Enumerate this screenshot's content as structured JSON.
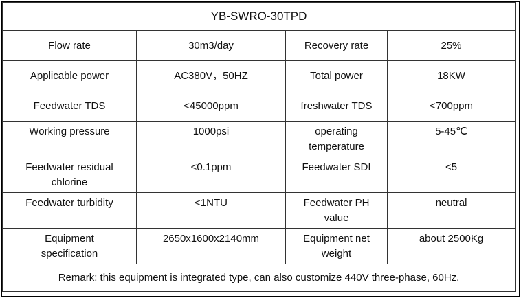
{
  "table": {
    "title": "YB-SWRO-30TPD",
    "rows": [
      [
        "Flow rate",
        "30m3/day",
        "Recovery rate",
        "25%"
      ],
      [
        "Applicable power",
        "AC380V，50HZ",
        "Total power",
        "18KW"
      ],
      [
        "Feedwater TDS",
        "<45000ppm",
        "freshwater TDS",
        "<700ppm"
      ],
      [
        "Working pressure",
        "1000psi",
        "operating\ntemperature",
        "5-45℃"
      ],
      [
        "Feedwater residual\nchlorine",
        "<0.1ppm",
        "Feedwater SDI",
        "<5"
      ],
      [
        "Feedwater turbidity",
        "<1NTU",
        "Feedwater PH\nvalue",
        "neutral"
      ],
      [
        "Equipment\nspecification",
        "2650x1600x2140mm",
        "Equipment net\nweight",
        "about 2500Kg"
      ]
    ],
    "remark": "Remark: this equipment is integrated type, can also customize 440V three-phase, 60Hz."
  }
}
